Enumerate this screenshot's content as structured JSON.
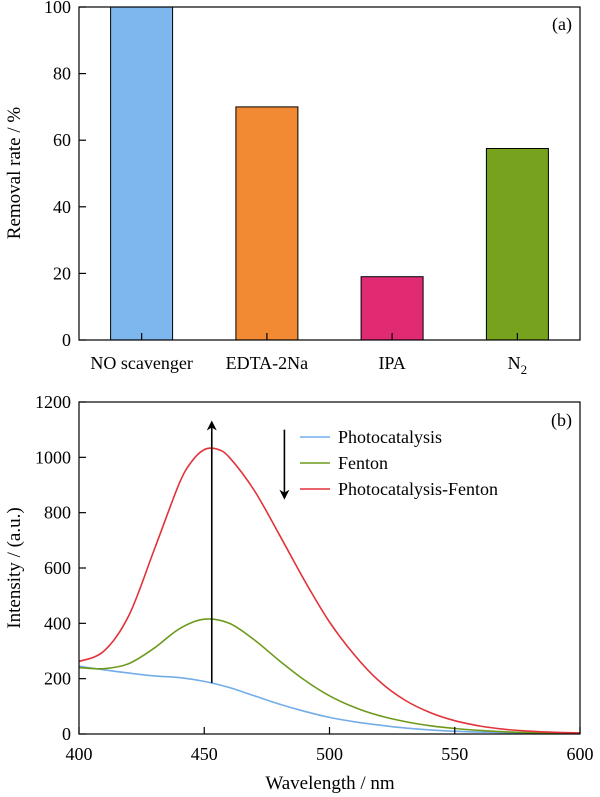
{
  "chart_data": [
    {
      "type": "bar",
      "panel_label": "(a)",
      "categories": [
        "NO scavenger",
        "EDTA-2Na",
        "IPA",
        "N"
      ],
      "category_subscripts": [
        "",
        "",
        "",
        "2"
      ],
      "values": [
        100,
        70,
        19,
        57.5
      ],
      "colors": [
        "#7EB6EE",
        "#F18A33",
        "#E02A72",
        "#76A21E"
      ],
      "ylabel": "Removal rate / %",
      "ylim": [
        0,
        100
      ],
      "yticks": [
        0,
        20,
        40,
        60,
        80,
        100
      ],
      "grid": false
    },
    {
      "type": "line",
      "panel_label": "(b)",
      "xlabel": "Wavelength / nm",
      "ylabel": "Intensity / (a.u.)",
      "xlim": [
        400,
        600
      ],
      "ylim": [
        0,
        1200
      ],
      "xticks": [
        400,
        450,
        500,
        550,
        600
      ],
      "yticks": [
        0,
        200,
        400,
        600,
        800,
        1000,
        1200
      ],
      "grid": false,
      "legend_position": "top-right",
      "series": [
        {
          "name": "Photocatalysis",
          "color": "#72ADE8",
          "x": [
            400,
            410,
            420,
            430,
            440,
            450,
            460,
            470,
            480,
            490,
            500,
            510,
            520,
            530,
            540,
            550,
            560,
            570,
            580,
            590,
            600
          ],
          "y": [
            245,
            232,
            220,
            210,
            204,
            190,
            168,
            138,
            108,
            82,
            60,
            44,
            32,
            22,
            15,
            10,
            7,
            5,
            3,
            2,
            1
          ]
        },
        {
          "name": "Fenton",
          "color": "#6E9A1C",
          "x": [
            400,
            410,
            420,
            430,
            440,
            450,
            460,
            470,
            480,
            490,
            500,
            510,
            520,
            530,
            540,
            550,
            560,
            570,
            580,
            590,
            600
          ],
          "y": [
            240,
            236,
            255,
            310,
            380,
            415,
            400,
            340,
            265,
            195,
            138,
            96,
            66,
            45,
            30,
            20,
            13,
            8,
            5,
            3,
            2
          ]
        },
        {
          "name": "Photocatalysis-Fenton",
          "color": "#E2323A",
          "x": [
            400,
            410,
            420,
            430,
            440,
            445,
            450,
            455,
            460,
            470,
            480,
            490,
            500,
            510,
            520,
            530,
            540,
            550,
            560,
            570,
            580,
            590,
            600
          ],
          "y": [
            262,
            300,
            430,
            665,
            905,
            985,
            1028,
            1030,
            1000,
            880,
            720,
            555,
            405,
            285,
            190,
            123,
            78,
            48,
            29,
            17,
            10,
            6,
            4
          ]
        }
      ],
      "annotations": [
        {
          "type": "arrow",
          "direction": "up",
          "x": 453,
          "y_from": 185,
          "y_to": 1115
        },
        {
          "type": "arrow",
          "direction": "down",
          "x": 482,
          "y_from": 1100,
          "y_to": 865
        }
      ]
    }
  ]
}
